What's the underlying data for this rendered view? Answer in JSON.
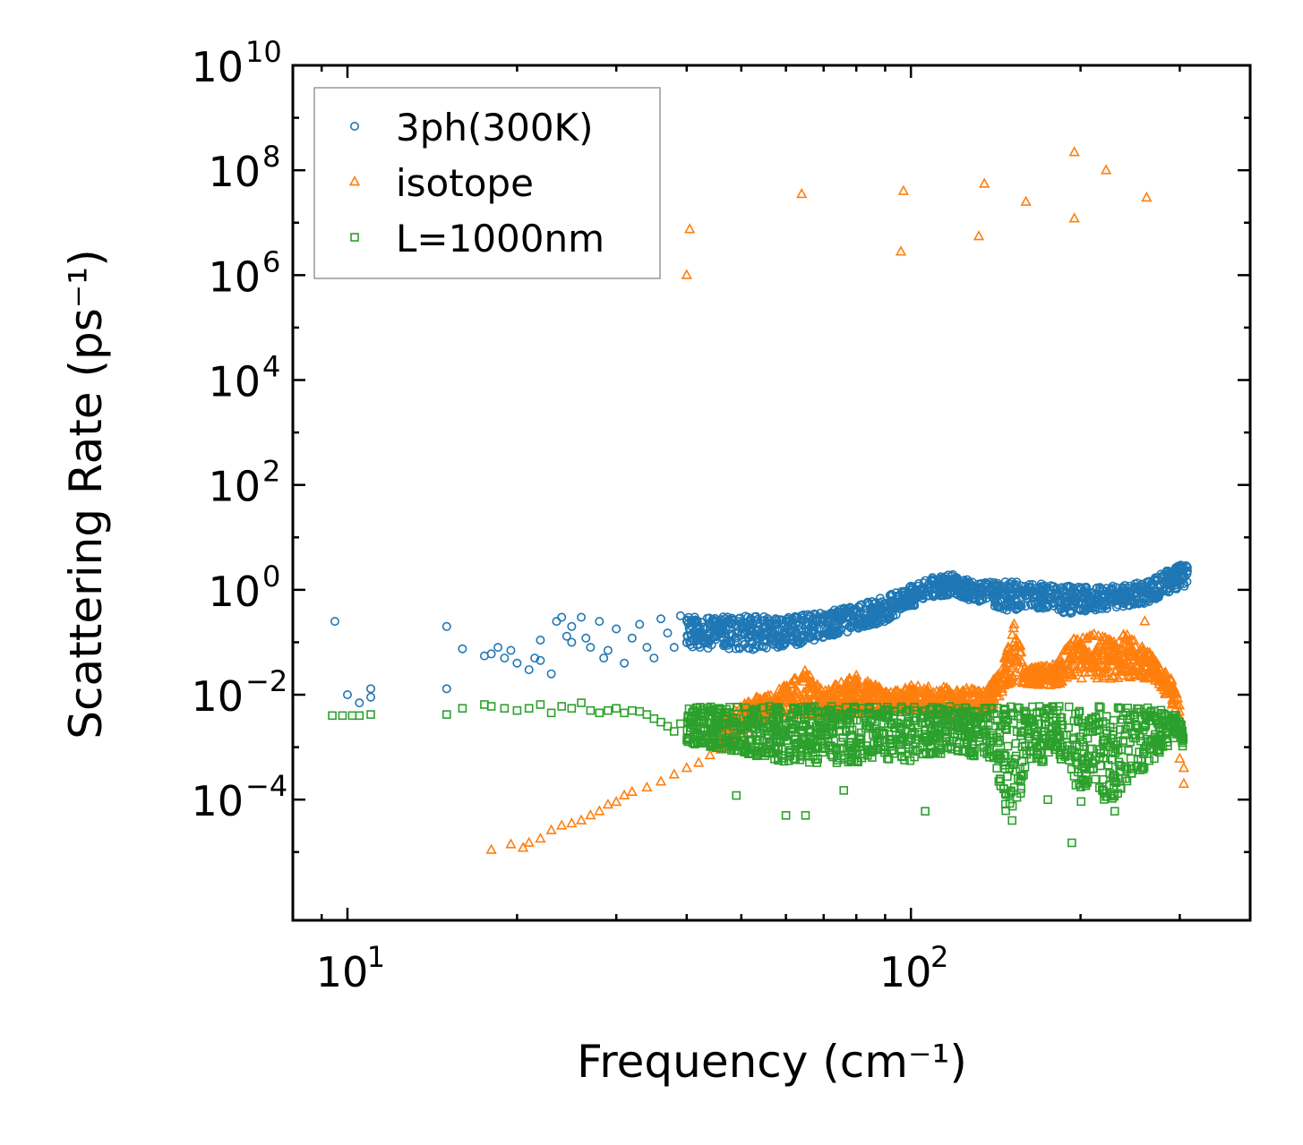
{
  "chart_data": {
    "type": "scatter",
    "xscale": "log",
    "yscale": "log",
    "xlim": [
      8,
      400
    ],
    "ylim": [
      5e-07,
      10000000000
    ],
    "xlabel": "Frequency (cm⁻¹)",
    "ylabel": "Scattering Rate (ps⁻¹)",
    "xticks": [
      {
        "base": "10",
        "exp": "1"
      },
      {
        "base": "10",
        "exp": "2"
      }
    ],
    "yticks": [
      {
        "base": "10",
        "exp": "−4"
      },
      {
        "base": "10",
        "exp": "−2"
      },
      {
        "base": "10",
        "exp": "0"
      },
      {
        "base": "10",
        "exp": "2"
      },
      {
        "base": "10",
        "exp": "4"
      },
      {
        "base": "10",
        "exp": "6"
      },
      {
        "base": "10",
        "exp": "8"
      },
      {
        "base": "10",
        "exp": "10"
      }
    ],
    "legend_position": "top-left",
    "series": [
      {
        "name": "3ph(300K)",
        "marker": "circle",
        "color": "#1f77b4",
        "points": [
          [
            9.5,
            0.25
          ],
          [
            10,
            0.01
          ],
          [
            10.5,
            0.007
          ],
          [
            11,
            0.013
          ],
          [
            11,
            0.009
          ],
          [
            15,
            0.2
          ],
          [
            15,
            0.013
          ],
          [
            16,
            0.075
          ],
          [
            17.5,
            0.055
          ],
          [
            18,
            0.06
          ],
          [
            18.5,
            0.08
          ],
          [
            19,
            0.05
          ],
          [
            19.5,
            0.07
          ],
          [
            20,
            0.04
          ],
          [
            21,
            0.03
          ],
          [
            21.5,
            0.05
          ],
          [
            22,
            0.11
          ],
          [
            22,
            0.045
          ],
          [
            23,
            0.025
          ],
          [
            23.5,
            0.25
          ],
          [
            24,
            0.3
          ],
          [
            24.5,
            0.13
          ],
          [
            25,
            0.2
          ],
          [
            25,
            0.1
          ],
          [
            26,
            0.3
          ],
          [
            26.5,
            0.12
          ],
          [
            27,
            0.08
          ],
          [
            28,
            0.25
          ],
          [
            28.5,
            0.05
          ],
          [
            29,
            0.07
          ],
          [
            30,
            0.18
          ],
          [
            31,
            0.04
          ],
          [
            32,
            0.12
          ],
          [
            33,
            0.22
          ],
          [
            34,
            0.08
          ],
          [
            35,
            0.05
          ],
          [
            36,
            0.28
          ],
          [
            37,
            0.15
          ],
          [
            38,
            0.08
          ],
          [
            39,
            0.32
          ],
          [
            40,
            0.1
          ]
        ],
        "bands": [
          [
            40,
            0.08,
            0.3
          ],
          [
            50,
            0.07,
            0.32
          ],
          [
            60,
            0.08,
            0.3
          ],
          [
            70,
            0.12,
            0.38
          ],
          [
            80,
            0.17,
            0.5
          ],
          [
            90,
            0.25,
            0.75
          ],
          [
            100,
            0.45,
            1.2
          ],
          [
            110,
            0.75,
            1.8
          ],
          [
            120,
            0.75,
            2.0
          ],
          [
            130,
            0.55,
            1.4
          ],
          [
            140,
            0.45,
            1.4
          ],
          [
            150,
            0.4,
            1.5
          ],
          [
            170,
            0.45,
            1.3
          ],
          [
            190,
            0.35,
            1.2
          ],
          [
            210,
            0.4,
            1.1
          ],
          [
            230,
            0.45,
            1.2
          ],
          [
            260,
            0.55,
            1.4
          ],
          [
            280,
            0.75,
            2.2
          ],
          [
            300,
            1.0,
            3.0
          ],
          [
            310,
            1.2,
            3.0
          ]
        ]
      },
      {
        "name": "isotope",
        "marker": "triangle",
        "color": "#ff7f0e",
        "points": [
          [
            40.5,
            7500000
          ],
          [
            40,
            1000000
          ],
          [
            64,
            35000000
          ],
          [
            97,
            40000000
          ],
          [
            96,
            2800000
          ],
          [
            135,
            55000000
          ],
          [
            132,
            5500000
          ],
          [
            160,
            25000000
          ],
          [
            195,
            12000000
          ],
          [
            195,
            220000000
          ],
          [
            222,
            100000000
          ],
          [
            262,
            30000000
          ],
          [
            18,
            1.1e-05
          ],
          [
            19.5,
            1.4e-05
          ],
          [
            20.5,
            1.2e-05
          ],
          [
            21,
            1.5e-05
          ],
          [
            22,
            1.8e-05
          ],
          [
            23,
            2.6e-05
          ],
          [
            24,
            3.2e-05
          ],
          [
            25,
            3.5e-05
          ],
          [
            26,
            4e-05
          ],
          [
            27,
            5e-05
          ],
          [
            28,
            6e-05
          ],
          [
            29,
            8e-05
          ],
          [
            30,
            9e-05
          ],
          [
            31,
            0.00012
          ],
          [
            32,
            0.00014
          ],
          [
            34,
            0.00017
          ],
          [
            36,
            0.00022
          ],
          [
            38,
            0.0003
          ],
          [
            40,
            0.0004
          ],
          [
            42,
            0.0005
          ],
          [
            44,
            0.0007
          ],
          [
            46,
            0.0009
          ],
          [
            48,
            0.0012
          ],
          [
            50,
            0.0016
          ],
          [
            260,
            0.25
          ],
          [
            300,
            0.0006
          ],
          [
            305,
            0.0002
          ],
          [
            305,
            0.0004
          ]
        ],
        "bands": [
          [
            45,
            0.0008,
            0.003
          ],
          [
            52,
            0.0025,
            0.008
          ],
          [
            60,
            0.004,
            0.015
          ],
          [
            65,
            0.004,
            0.03
          ],
          [
            70,
            0.004,
            0.012
          ],
          [
            80,
            0.004,
            0.025
          ],
          [
            90,
            0.005,
            0.012
          ],
          [
            100,
            0.005,
            0.015
          ],
          [
            115,
            0.004,
            0.015
          ],
          [
            135,
            0.004,
            0.012
          ],
          [
            145,
            0.01,
            0.03
          ],
          [
            152,
            0.02,
            0.3
          ],
          [
            160,
            0.015,
            0.03
          ],
          [
            180,
            0.015,
            0.04
          ],
          [
            195,
            0.02,
            0.12
          ],
          [
            210,
            0.02,
            0.15
          ],
          [
            225,
            0.02,
            0.12
          ],
          [
            240,
            0.02,
            0.15
          ],
          [
            255,
            0.02,
            0.1
          ],
          [
            270,
            0.02,
            0.05
          ],
          [
            290,
            0.006,
            0.02
          ],
          [
            300,
            0.002,
            0.008
          ]
        ]
      },
      {
        "name": "L=1000nm",
        "marker": "square",
        "color": "#2ca02c",
        "points": [
          [
            9.4,
            0.004
          ],
          [
            9.8,
            0.004
          ],
          [
            10.2,
            0.004
          ],
          [
            10.5,
            0.004
          ],
          [
            11,
            0.0042
          ],
          [
            15,
            0.0042
          ],
          [
            16,
            0.0055
          ],
          [
            17.5,
            0.0065
          ],
          [
            18,
            0.006
          ],
          [
            19,
            0.0055
          ],
          [
            20,
            0.005
          ],
          [
            21,
            0.0055
          ],
          [
            22,
            0.0065
          ],
          [
            23,
            0.0045
          ],
          [
            24,
            0.006
          ],
          [
            25,
            0.0055
          ],
          [
            26,
            0.007
          ],
          [
            27,
            0.005
          ],
          [
            28,
            0.0045
          ],
          [
            29,
            0.005
          ],
          [
            30,
            0.0055
          ],
          [
            31,
            0.0045
          ],
          [
            32,
            0.005
          ],
          [
            33,
            0.0048
          ],
          [
            34,
            0.0042
          ],
          [
            35,
            0.0035
          ],
          [
            36,
            0.003
          ],
          [
            37,
            0.0025
          ],
          [
            38,
            0.002
          ],
          [
            39,
            0.0028
          ],
          [
            60,
            5e-05
          ],
          [
            65,
            5e-05
          ],
          [
            106,
            6e-05
          ],
          [
            193,
            1.5e-05
          ],
          [
            175,
            0.0001
          ],
          [
            76,
            0.00015
          ],
          [
            49,
            0.00012
          ],
          [
            230,
            6e-05
          ]
        ],
        "bands": [
          [
            40,
            0.0012,
            0.006
          ],
          [
            50,
            0.0008,
            0.006
          ],
          [
            60,
            0.0005,
            0.006
          ],
          [
            70,
            0.0005,
            0.006
          ],
          [
            80,
            0.0005,
            0.006
          ],
          [
            90,
            0.0006,
            0.006
          ],
          [
            100,
            0.0005,
            0.006
          ],
          [
            110,
            0.0007,
            0.006
          ],
          [
            120,
            0.0007,
            0.006
          ],
          [
            140,
            0.0006,
            0.006
          ],
          [
            152,
            1.5e-05,
            0.006
          ],
          [
            160,
            0.0005,
            0.006
          ],
          [
            175,
            0.0005,
            0.006
          ],
          [
            190,
            0.0005,
            0.006
          ],
          [
            200,
            8e-05,
            0.006
          ],
          [
            210,
            0.0003,
            0.006
          ],
          [
            225,
            6e-05,
            0.006
          ],
          [
            240,
            0.0002,
            0.006
          ],
          [
            260,
            0.0004,
            0.006
          ],
          [
            280,
            0.0008,
            0.005
          ],
          [
            300,
            0.002,
            0.004
          ],
          [
            305,
            0.0006,
            0.002
          ]
        ]
      }
    ]
  }
}
